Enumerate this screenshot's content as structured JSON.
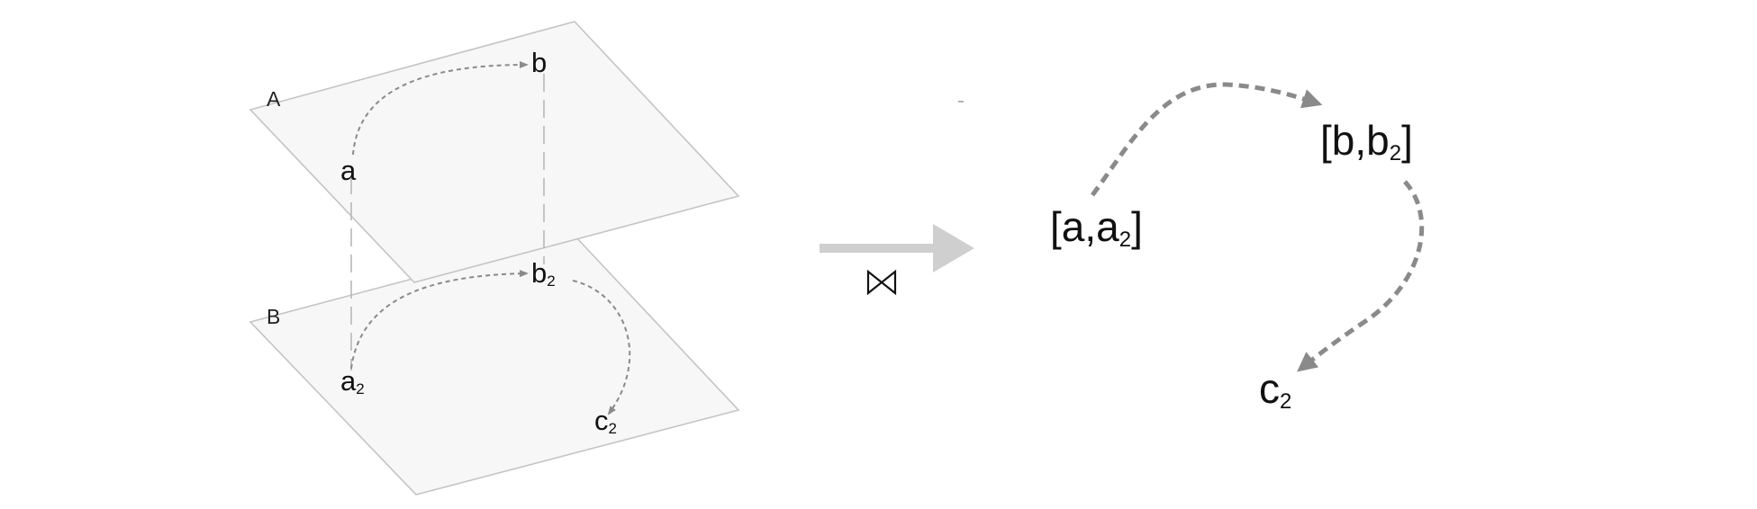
{
  "colors": {
    "plane_fill": "#f7f7f7",
    "plane_stroke": "#c4c4c4",
    "arrow_gray": "#8a8a8a",
    "join_arrow": "#cfcfcf",
    "text": "#111111"
  },
  "left_diagram": {
    "plane_a": {
      "label": "A",
      "nodes": [
        {
          "id": "a",
          "base": "a",
          "sub": ""
        },
        {
          "id": "b",
          "base": "b",
          "sub": ""
        }
      ]
    },
    "plane_b": {
      "label": "B",
      "nodes": [
        {
          "id": "a2",
          "base": "a",
          "sub": "2"
        },
        {
          "id": "b2",
          "base": "b",
          "sub": "2"
        },
        {
          "id": "c2",
          "base": "c",
          "sub": "2"
        }
      ]
    },
    "edges": [
      {
        "from": "a",
        "to": "b",
        "style": "dashed-arrow"
      },
      {
        "from": "a2",
        "to": "b2",
        "style": "dashed-arrow"
      },
      {
        "from": "b2",
        "to": "c2",
        "style": "dashed-arrow"
      }
    ],
    "correspondences": [
      {
        "from": "a",
        "to": "a2",
        "style": "long-dash"
      },
      {
        "from": "b",
        "to": "b2",
        "style": "long-dash"
      }
    ]
  },
  "operator": {
    "icon": "bowtie-join-icon",
    "symbol": "⋈",
    "arrow": "right-arrow"
  },
  "right_diagram": {
    "nodes": [
      {
        "id": "a_a2",
        "open": "[",
        "first": "a",
        "sep": ",",
        "second": "a",
        "sub": "2",
        "close": "]"
      },
      {
        "id": "b_b2",
        "open": "[",
        "first": "b",
        "sep": ",",
        "second": "b",
        "sub": "2",
        "close": "]"
      },
      {
        "id": "c2",
        "base": "c",
        "sub": "2"
      }
    ],
    "edges": [
      {
        "from": "a_a2",
        "to": "b_b2",
        "style": "dashed-arrow"
      },
      {
        "from": "b_b2",
        "to": "c2",
        "style": "dashed-arrow"
      }
    ]
  }
}
